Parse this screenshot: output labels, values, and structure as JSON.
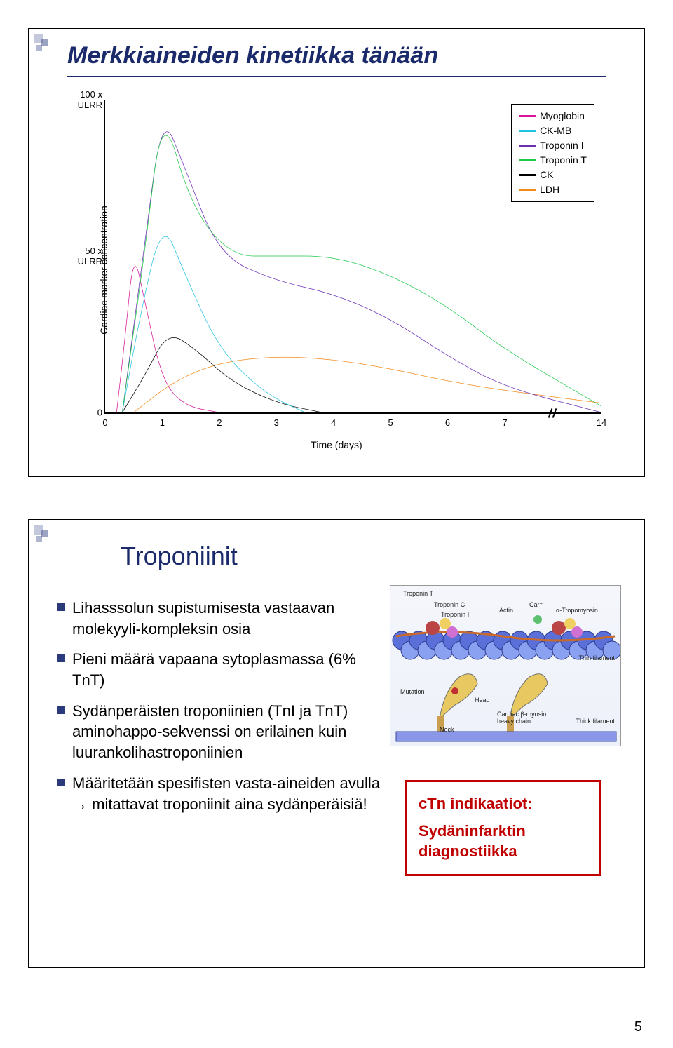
{
  "page_number": "5",
  "slide1": {
    "title": "Merkkiaineiden kinetiikka tänään",
    "title_color": "#1a2a6a",
    "title_fontsize": 34,
    "chart": {
      "type": "line",
      "x_label": "Time (days)",
      "y_label": "Cardiac marker concentration",
      "label_fontsize": 14,
      "background_color": "#ffffff",
      "axis_color": "#000000",
      "x_ticks": [
        0,
        1,
        2,
        3,
        4,
        5,
        6,
        7,
        14
      ],
      "x_tick_positions_pct": [
        0,
        11.5,
        23,
        34.5,
        46,
        57.5,
        69,
        80.5,
        100
      ],
      "axis_break_between": [
        7,
        14
      ],
      "y_ticks": [
        {
          "label": "0",
          "pos_pct": 100
        },
        {
          "label": "50 x ULRR",
          "pos_pct": 50
        },
        {
          "label": "100 x ULRR",
          "pos_pct": 0
        }
      ],
      "legend": [
        {
          "name": "Myoglobin",
          "color": "#d6169a"
        },
        {
          "name": "CK-MB",
          "color": "#1fc3e0"
        },
        {
          "name": "Troponin I",
          "color": "#6a2fb5"
        },
        {
          "name": "Troponin T",
          "color": "#1fc94a"
        },
        {
          "name": "CK",
          "color": "#000000"
        },
        {
          "name": "LDH",
          "color": "#f28a1a"
        }
      ],
      "line_width": 3,
      "series": {
        "Myoglobin": [
          [
            0.2,
            0
          ],
          [
            0.35,
            24
          ],
          [
            0.5,
            52
          ],
          [
            0.7,
            35
          ],
          [
            1.0,
            10
          ],
          [
            1.4,
            2
          ],
          [
            2.0,
            0
          ]
        ],
        "CK-MB": [
          [
            0.3,
            0
          ],
          [
            0.6,
            30
          ],
          [
            1.0,
            62
          ],
          [
            1.4,
            44
          ],
          [
            2.0,
            20
          ],
          [
            2.8,
            6
          ],
          [
            3.5,
            0
          ]
        ],
        "CK": [
          [
            0.3,
            0
          ],
          [
            0.7,
            12
          ],
          [
            1.1,
            26
          ],
          [
            1.6,
            20
          ],
          [
            2.2,
            10
          ],
          [
            3.0,
            3
          ],
          [
            3.8,
            0
          ]
        ],
        "LDH": [
          [
            0.5,
            0
          ],
          [
            1.2,
            10
          ],
          [
            2.0,
            16
          ],
          [
            3.0,
            18
          ],
          [
            4.0,
            17
          ],
          [
            5.0,
            14
          ],
          [
            6.0,
            10
          ],
          [
            7.0,
            7
          ],
          [
            14,
            3
          ]
        ],
        "Troponin I": [
          [
            0.3,
            0
          ],
          [
            0.7,
            55
          ],
          [
            1.0,
            96
          ],
          [
            1.4,
            78
          ],
          [
            2.0,
            50
          ],
          [
            3.0,
            42
          ],
          [
            4.0,
            38
          ],
          [
            5.0,
            30
          ],
          [
            6.0,
            18
          ],
          [
            7.0,
            8
          ],
          [
            14,
            0
          ]
        ],
        "Troponin T": [
          [
            0.3,
            0
          ],
          [
            0.7,
            52
          ],
          [
            1.0,
            98
          ],
          [
            1.5,
            66
          ],
          [
            2.2,
            50
          ],
          [
            3.0,
            50
          ],
          [
            4.0,
            50
          ],
          [
            5.0,
            44
          ],
          [
            6.0,
            34
          ],
          [
            7.0,
            20
          ],
          [
            14,
            2
          ]
        ]
      }
    }
  },
  "slide2": {
    "title": "Troponiinit",
    "title_color": "#1a2a6a",
    "title_fontsize": 36,
    "bullet_fontsize": 22,
    "bullet_marker_color": "#2a3a7a",
    "bullets": [
      "Lihasssolun supistumisesta vastaavan molekyyli-kompleksin osia",
      "Pieni määrä vapaana sytoplasmassa (6% TnT)",
      "Sydänperäisten troponiinien (TnI ja TnT) aminohappo-sekvenssi on erilainen kuin luurankolihastroponiinien",
      "Määritetään spesifisten vasta-aineiden avulla → mitattavat troponiinit aina sydänperäisiä!"
    ],
    "diagram_labels": {
      "tnt": "Troponin T",
      "tnc": "Troponin C",
      "tni": "Troponin I",
      "actin": "Actin",
      "ca": "Ca²⁺",
      "atrop": "α-Tropomyosin",
      "thin": "Thin filament",
      "thick": "Thick filament",
      "neck": "Neck",
      "head": "Head",
      "mutation": "Mutation",
      "myosin": "Cardiac β-myosin heavy chain"
    },
    "diagram_colors": {
      "filament": "#5a6fd8",
      "actin": "#8aa0f0",
      "tnt": "#b44",
      "tnc": "#f0d060",
      "tni": "#d070d0",
      "ca": "#5cc070",
      "head": "#e8c860",
      "neck": "#caa050"
    },
    "callout": {
      "border_color": "#c00000",
      "text_color": "#c00000",
      "fontsize": 22,
      "line1": "cTn indikaatiot:",
      "line2": "Sydäninfarktin diagnostiikka"
    }
  }
}
